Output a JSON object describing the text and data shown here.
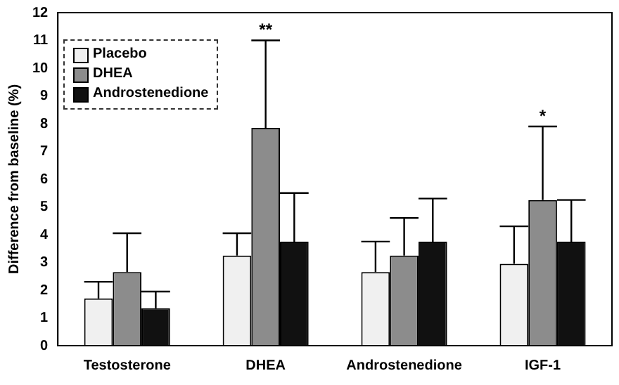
{
  "chart_data": {
    "type": "bar",
    "ylabel": "Difference from baseline (%)",
    "categories": [
      "Testosterone",
      "DHEA",
      "Androstenedione",
      "IGF-1"
    ],
    "series": [
      {
        "name": "Placebo",
        "color": "#f0f0f0",
        "values": [
          1.7,
          3.25,
          2.65,
          2.95
        ],
        "errors": [
          [
            1.7,
            2.3
          ],
          [
            3.25,
            4.05
          ],
          [
            2.65,
            3.75
          ],
          [
            2.95,
            4.3
          ]
        ]
      },
      {
        "name": "DHEA",
        "color": "#8c8c8c",
        "values": [
          2.65,
          7.85,
          3.25,
          5.25
        ],
        "errors": [
          [
            2.65,
            4.05
          ],
          [
            7.85,
            11
          ],
          [
            3.25,
            4.6
          ],
          [
            5.25,
            7.9
          ]
        ]
      },
      {
        "name": "Androstenedione",
        "color": "#111111",
        "values": [
          1.35,
          3.75,
          3.75,
          3.75
        ],
        "errors": [
          [
            1.35,
            1.95
          ],
          [
            3.75,
            5.5
          ],
          [
            3.75,
            5.3
          ],
          [
            3.75,
            5.25
          ]
        ]
      }
    ],
    "ylim": [
      0,
      12
    ],
    "yticks": [
      0,
      1,
      2,
      3,
      4,
      5,
      6,
      7,
      8,
      9,
      10,
      11,
      12
    ],
    "grid": false,
    "legend": "top left",
    "annotations": [
      {
        "text": "**",
        "x": "DHEA",
        "y": 11
      },
      {
        "text": "*",
        "x": "IGF-1",
        "y": 7.9
      }
    ]
  }
}
